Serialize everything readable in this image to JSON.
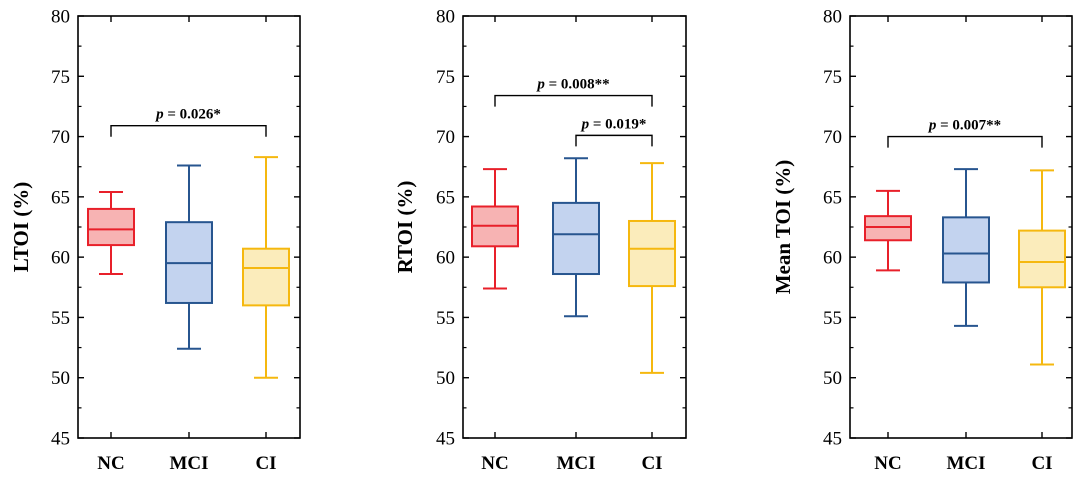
{
  "chart_data": [
    {
      "type": "box",
      "ylabel": "LTOI (%)",
      "ylim": [
        45,
        80
      ],
      "yticks": [
        45,
        50,
        55,
        60,
        65,
        70,
        75,
        80
      ],
      "categories": [
        "NC",
        "MCI",
        "CI"
      ],
      "boxes": [
        {
          "name": "NC",
          "whisker_low": 58.6,
          "q1": 61.0,
          "median": 62.3,
          "q3": 64.0,
          "whisker_high": 65.4
        },
        {
          "name": "MCI",
          "whisker_low": 52.4,
          "q1": 56.2,
          "median": 59.5,
          "q3": 62.9,
          "whisker_high": 67.6
        },
        {
          "name": "CI",
          "whisker_low": 50.0,
          "q1": 56.0,
          "median": 59.1,
          "q3": 60.7,
          "whisker_high": 68.3
        }
      ],
      "significance": [
        {
          "from": "NC",
          "to": "CI",
          "y": 70.9,
          "p_text": "p",
          "rest_text": " = 0.026*"
        }
      ]
    },
    {
      "type": "box",
      "ylabel": "RTOI (%)",
      "ylim": [
        45,
        80
      ],
      "yticks": [
        45,
        50,
        55,
        60,
        65,
        70,
        75,
        80
      ],
      "categories": [
        "NC",
        "MCI",
        "CI"
      ],
      "boxes": [
        {
          "name": "NC",
          "whisker_low": 57.4,
          "q1": 60.9,
          "median": 62.6,
          "q3": 64.2,
          "whisker_high": 67.3
        },
        {
          "name": "MCI",
          "whisker_low": 55.1,
          "q1": 58.6,
          "median": 61.9,
          "q3": 64.5,
          "whisker_high": 68.2
        },
        {
          "name": "CI",
          "whisker_low": 50.4,
          "q1": 57.6,
          "median": 60.7,
          "q3": 63.0,
          "whisker_high": 67.8
        }
      ],
      "significance": [
        {
          "from": "NC",
          "to": "CI",
          "y": 73.4,
          "p_text": "p",
          "rest_text": " = 0.008**"
        },
        {
          "from": "MCI",
          "to": "CI",
          "y": 70.1,
          "p_text": "p",
          "rest_text": " = 0.019*"
        }
      ]
    },
    {
      "type": "box",
      "ylabel": "Mean TOI (%)",
      "ylim": [
        45,
        80
      ],
      "yticks": [
        45,
        50,
        55,
        60,
        65,
        70,
        75,
        80
      ],
      "categories": [
        "NC",
        "MCI",
        "CI"
      ],
      "boxes": [
        {
          "name": "NC",
          "whisker_low": 58.9,
          "q1": 61.4,
          "median": 62.5,
          "q3": 63.4,
          "whisker_high": 65.5
        },
        {
          "name": "MCI",
          "whisker_low": 54.3,
          "q1": 57.9,
          "median": 60.3,
          "q3": 63.3,
          "whisker_high": 67.3
        },
        {
          "name": "CI",
          "whisker_low": 51.1,
          "q1": 57.5,
          "median": 59.6,
          "q3": 62.2,
          "whisker_high": 67.2
        }
      ],
      "significance": [
        {
          "from": "NC",
          "to": "CI",
          "y": 70.0,
          "p_text": "p",
          "rest_text": " = 0.007**"
        }
      ]
    }
  ],
  "colors": {
    "NC": {
      "stroke": "#e8202a",
      "fill": "#f7b3b3"
    },
    "MCI": {
      "stroke": "#27558f",
      "fill": "#c3d3ef"
    },
    "CI": {
      "stroke": "#f5b80f",
      "fill": "#fbecbb"
    }
  }
}
